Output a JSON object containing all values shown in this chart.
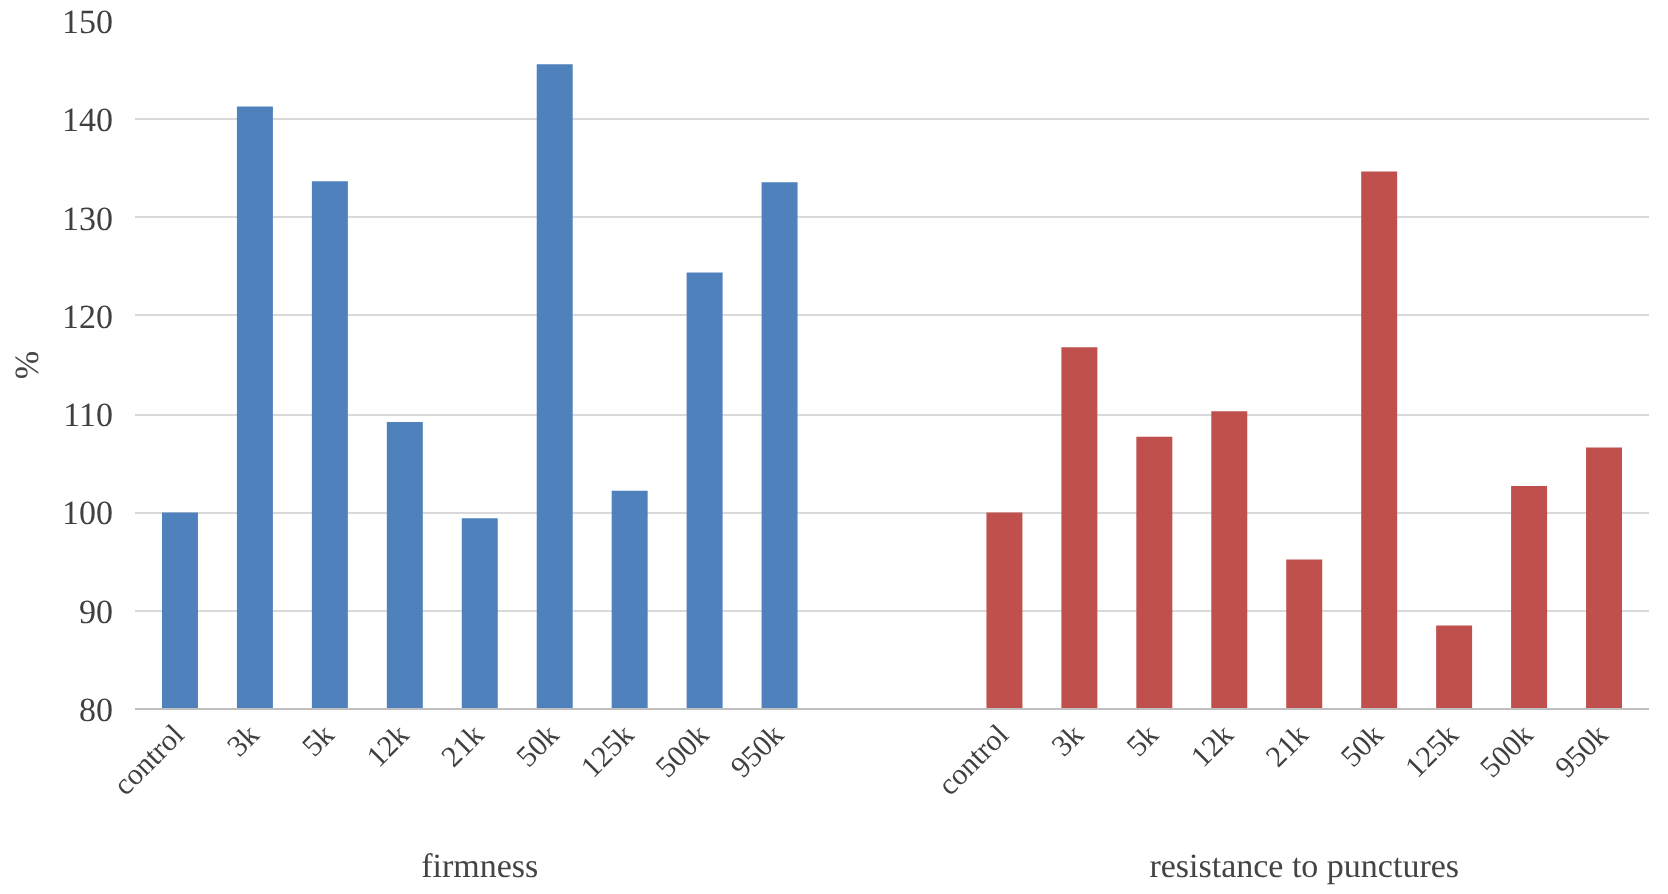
{
  "chart_data": {
    "type": "bar",
    "ylabel": "%",
    "categories": [
      "control",
      "3k",
      "5k",
      "12k",
      "21k",
      "50k",
      "125k",
      "500k",
      "950k",
      null,
      null,
      "control",
      "3k",
      "5k",
      "12k",
      "21k",
      "50k",
      "125k",
      "500k",
      "950k"
    ],
    "series": [
      {
        "color": "#4f81bd",
        "values": [
          100,
          141.3,
          133.7,
          109.2,
          99.4,
          145.6,
          102.2,
          124.4,
          133.6,
          null,
          null,
          null,
          null,
          null,
          null,
          null,
          null,
          null,
          null,
          null
        ]
      },
      {
        "color": "#c0504d",
        "values": [
          null,
          null,
          null,
          null,
          null,
          null,
          null,
          null,
          null,
          null,
          null,
          100,
          116.8,
          107.7,
          110.3,
          95.2,
          134.7,
          88.5,
          102.7,
          106.6
        ]
      }
    ],
    "ylim": [
      80,
      150
    ],
    "yticks": [
      80,
      90,
      100,
      110,
      120,
      130,
      140,
      150
    ],
    "grid": "y",
    "annotations": [
      "firmness",
      "resistance to punctures"
    ]
  }
}
